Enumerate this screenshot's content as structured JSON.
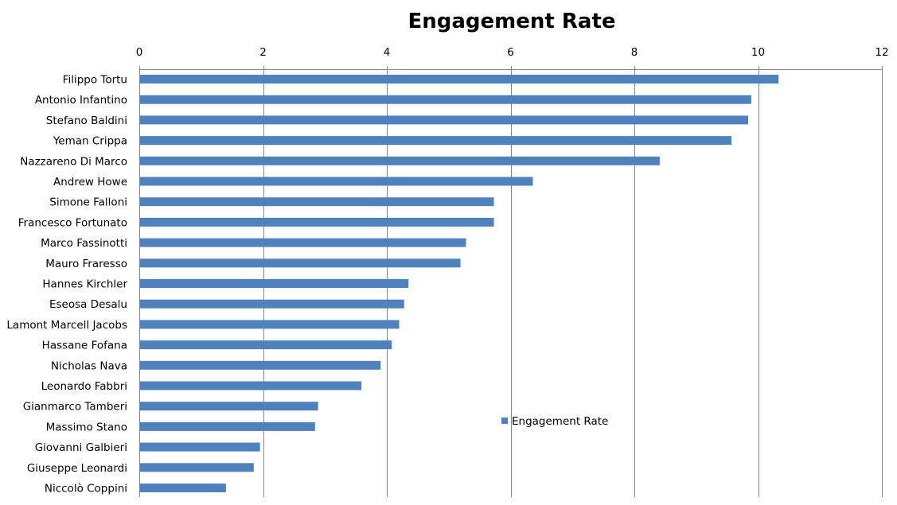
{
  "chart_data": {
    "type": "bar",
    "orientation": "horizontal",
    "title": "Engagement Rate",
    "xlabel": "",
    "ylabel": "",
    "xlim": [
      0,
      12
    ],
    "x_ticks": [
      0,
      2,
      4,
      6,
      8,
      10,
      12
    ],
    "x_axis_position": "top",
    "grid": true,
    "legend_position": "right",
    "categories": [
      "Filippo Tortu",
      "Antonio Infantino",
      "Stefano Baldini",
      "Yeman Crippa",
      "Nazzareno Di Marco",
      "Andrew Howe",
      "Simone Falloni",
      "Francesco Fortunato",
      "Marco Fassinotti",
      "Mauro Fraresso",
      "Hannes Kirchler",
      "Eseosa Desalu",
      "Lamont Marcell Jacobs",
      "Hassane Fofana",
      "Nicholas Nava",
      "Leonardo Fabbri",
      "Gianmarco Tamberi",
      "Massimo Stano",
      "Giovanni Galbieri",
      "Giuseppe Leonardi",
      "Niccolò Coppini"
    ],
    "series": [
      {
        "name": "Engagement Rate",
        "color": "#4F81BD",
        "values": [
          10.33,
          9.89,
          9.84,
          9.57,
          8.41,
          6.36,
          5.73,
          5.73,
          5.28,
          5.19,
          4.35,
          4.28,
          4.2,
          4.08,
          3.9,
          3.59,
          2.89,
          2.84,
          1.95,
          1.85,
          1.4
        ]
      }
    ]
  }
}
